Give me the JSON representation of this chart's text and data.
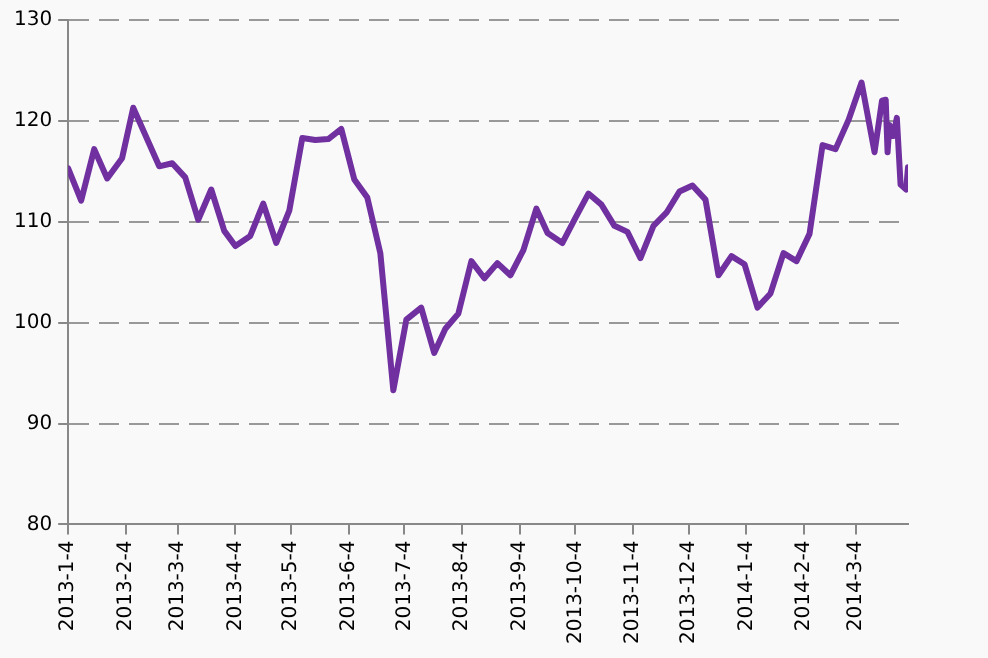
{
  "chart_data": {
    "type": "line",
    "color": "#7030a0",
    "grid": "y",
    "line_style": "solid",
    "marker": "none",
    "x": [
      "2013-01-04",
      "2013-01-11",
      "2013-01-18",
      "2013-01-25",
      "2013-02-02",
      "2013-02-08",
      "2013-02-22",
      "2013-03-01",
      "2013-03-08",
      "2013-03-15",
      "2013-03-22",
      "2013-03-29",
      "2013-04-04",
      "2013-04-12",
      "2013-04-19",
      "2013-04-26",
      "2013-05-03",
      "2013-05-10",
      "2013-05-17",
      "2013-05-24",
      "2013-05-31",
      "2013-06-07",
      "2013-06-14",
      "2013-06-21",
      "2013-06-28",
      "2013-07-05",
      "2013-07-13",
      "2013-07-20",
      "2013-07-26",
      "2013-08-02",
      "2013-08-09",
      "2013-08-16",
      "2013-08-23",
      "2013-08-30",
      "2013-09-06",
      "2013-09-13",
      "2013-09-19",
      "2013-09-27",
      "2013-10-04",
      "2013-10-11",
      "2013-10-18",
      "2013-10-25",
      "2013-11-01",
      "2013-11-08",
      "2013-11-15",
      "2013-11-22",
      "2013-11-29",
      "2013-12-06",
      "2013-12-13",
      "2013-12-20",
      "2013-12-27",
      "2014-01-03",
      "2014-01-10",
      "2014-01-17",
      "2014-01-24",
      "2014-01-31",
      "2014-02-07",
      "2014-02-14",
      "2014-02-21",
      "2014-02-28",
      "2014-03-07",
      "2014-03-14",
      "2014-03-18",
      "2014-03-20",
      "2014-03-21",
      "2014-03-22",
      "2014-03-24",
      "2014-03-26",
      "2014-03-28",
      "2014-03-31",
      "2014-04-01"
    ],
    "values": [
      115.3,
      112.1,
      117.2,
      114.3,
      116.3,
      121.3,
      115.5,
      115.8,
      114.4,
      110.2,
      113.2,
      109.1,
      107.6,
      108.6,
      111.8,
      107.9,
      111.1,
      118.3,
      118.1,
      118.2,
      119.2,
      114.2,
      112.4,
      106.9,
      93.3,
      100.3,
      101.5,
      97.0,
      99.4,
      100.9,
      106.1,
      104.4,
      105.9,
      104.7,
      107.2,
      111.3,
      108.9,
      107.9,
      110.4,
      112.8,
      111.7,
      109.6,
      109.0,
      106.4,
      109.6,
      110.9,
      113.0,
      113.6,
      112.2,
      104.7,
      106.6,
      105.8,
      101.5,
      102.9,
      106.9,
      106.1,
      108.8,
      117.6,
      117.2,
      120.1,
      123.8,
      116.9,
      122.0,
      122.1,
      116.9,
      119.6,
      118.5,
      120.3,
      113.7,
      113.2,
      115.4
    ],
    "xlim": [
      "2013-01-04",
      "2014-04-01"
    ],
    "xticks": [
      {
        "value": "2013-01-04",
        "label": "2013-1-4"
      },
      {
        "value": "2013-02-04",
        "label": "2013-2-4"
      },
      {
        "value": "2013-03-04",
        "label": "2013-3-4"
      },
      {
        "value": "2013-04-04",
        "label": "2013-4-4"
      },
      {
        "value": "2013-05-04",
        "label": "2013-5-4"
      },
      {
        "value": "2013-06-04",
        "label": "2013-6-4"
      },
      {
        "value": "2013-07-04",
        "label": "2013-7-4"
      },
      {
        "value": "2013-08-04",
        "label": "2013-8-4"
      },
      {
        "value": "2013-09-04",
        "label": "2013-9-4"
      },
      {
        "value": "2013-10-04",
        "label": "2013-10-4"
      },
      {
        "value": "2013-11-04",
        "label": "2013-11-4"
      },
      {
        "value": "2013-12-04",
        "label": "2013-12-4"
      },
      {
        "value": "2014-01-04",
        "label": "2014-1-4"
      },
      {
        "value": "2014-02-04",
        "label": "2014-2-4"
      },
      {
        "value": "2014-03-04",
        "label": "2014-3-4"
      }
    ],
    "ylim": [
      80,
      130
    ],
    "yticks": [
      80,
      90,
      100,
      110,
      120,
      130
    ]
  }
}
